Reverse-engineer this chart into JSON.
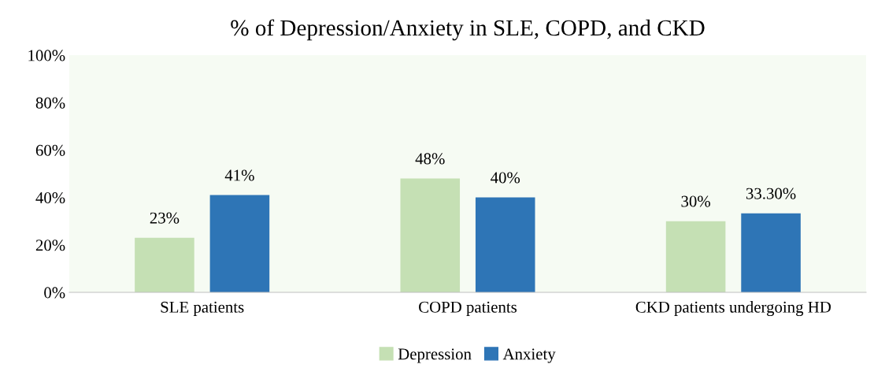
{
  "chart_data": {
    "type": "bar",
    "title": "% of Depression/Anxiety in SLE, COPD, and CKD",
    "categories": [
      "SLE patients",
      "COPD patients",
      "CKD patients undergoing HD"
    ],
    "series": [
      {
        "name": "Depression",
        "color": "#c5e0b4",
        "values": [
          23,
          48,
          30
        ],
        "value_labels": [
          "23%",
          "48%",
          "30%"
        ]
      },
      {
        "name": "Anxiety",
        "color": "#2e75b6",
        "values": [
          41,
          40,
          33.3
        ],
        "value_labels": [
          "41%",
          "40%",
          "33.30%"
        ]
      }
    ],
    "ylim": [
      0,
      100
    ],
    "yticks": [
      {
        "value": 0,
        "label": "0%"
      },
      {
        "value": 20,
        "label": "20%"
      },
      {
        "value": 40,
        "label": "40%"
      },
      {
        "value": 60,
        "label": "60%"
      },
      {
        "value": 80,
        "label": "80%"
      },
      {
        "value": 100,
        "label": "100%"
      }
    ],
    "grid": false,
    "legend": "bottom"
  }
}
